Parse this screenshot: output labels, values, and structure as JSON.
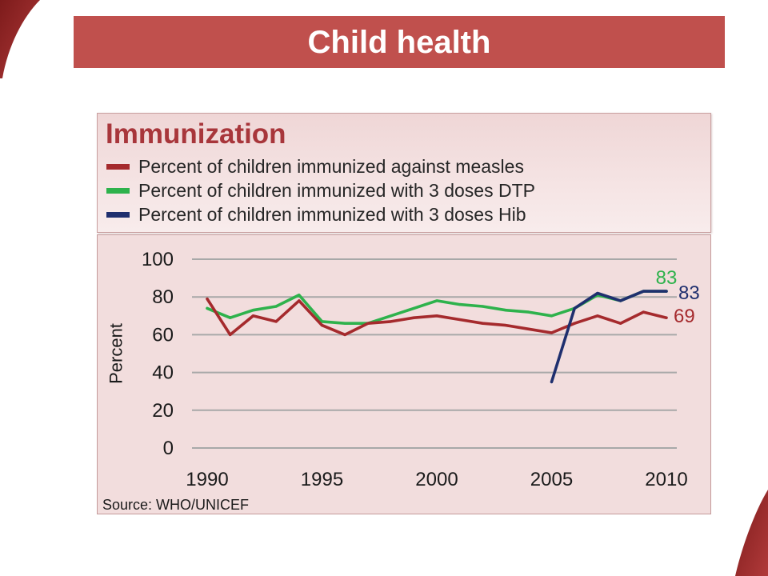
{
  "header": {
    "title": "Child health"
  },
  "chart_data": {
    "type": "line",
    "title": "Immunization",
    "ylabel": "Percent",
    "ylim": [
      0,
      100
    ],
    "yticks": [
      0,
      20,
      40,
      60,
      80,
      100
    ],
    "xticks": [
      1990,
      1995,
      2000,
      2005,
      2010
    ],
    "grid": true,
    "legend_position": "top",
    "x": [
      1990,
      1991,
      1992,
      1993,
      1994,
      1995,
      1996,
      1997,
      1998,
      1999,
      2000,
      2001,
      2002,
      2003,
      2004,
      2005,
      2006,
      2007,
      2008,
      2009,
      2010
    ],
    "series": [
      {
        "name": "Percent of children immunized against measles",
        "color": "#a52a2d",
        "values": [
          79,
          60,
          70,
          67,
          78,
          65,
          60,
          66,
          67,
          69,
          70,
          68,
          66,
          65,
          63,
          61,
          66,
          70,
          66,
          72,
          69
        ],
        "end_label": "69"
      },
      {
        "name": "Percent of children immunized with 3 doses DTP",
        "color": "#2eb24c",
        "values": [
          74,
          69,
          73,
          75,
          81,
          67,
          66,
          66,
          70,
          74,
          78,
          76,
          75,
          73,
          72,
          70,
          74,
          81,
          78,
          83,
          83
        ],
        "end_label": "83"
      },
      {
        "name": "Percent of children immunized with 3 doses Hib",
        "color": "#1f2f6e",
        "values": [
          null,
          null,
          null,
          null,
          null,
          null,
          null,
          null,
          null,
          null,
          null,
          null,
          null,
          null,
          null,
          35,
          74,
          82,
          78,
          83,
          83
        ],
        "end_label": "83"
      }
    ]
  },
  "source": "Source: WHO/UNICEF"
}
